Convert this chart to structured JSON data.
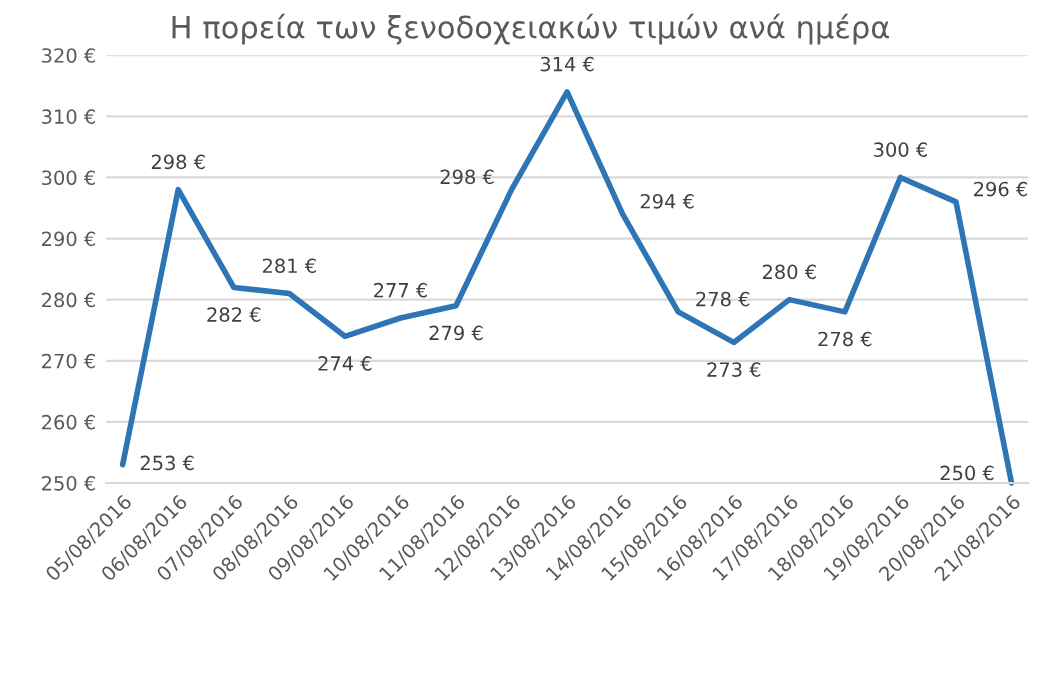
{
  "chart_data": {
    "type": "line",
    "title": "Η πορεία των ξενοδοχειακών τιμών ανά ημέρα",
    "categories": [
      "05/08/2016",
      "06/08/2016",
      "07/08/2016",
      "08/08/2016",
      "09/08/2016",
      "10/08/2016",
      "11/08/2016",
      "12/08/2016",
      "13/08/2016",
      "14/08/2016",
      "15/08/2016",
      "16/08/2016",
      "17/08/2016",
      "18/08/2016",
      "19/08/2016",
      "20/08/2016",
      "21/08/2016"
    ],
    "series": [
      {
        "color": "#2e75b6",
        "values": [
          253,
          298,
          282,
          281,
          274,
          277,
          279,
          298,
          314,
          294,
          278,
          273,
          280,
          278,
          300,
          296,
          250
        ],
        "value_labels": [
          "253 €",
          "298 €",
          "282 €",
          "281 €",
          "274 €",
          "277 €",
          "279 €",
          "298 €",
          "314 €",
          "294 €",
          "278 €",
          "273 €",
          "280 €",
          "278 €",
          "300 €",
          "296 €",
          "250 €"
        ]
      }
    ],
    "ylim": [
      250,
      320
    ],
    "yticks": [
      {
        "value": 250,
        "label": "250 €"
      },
      {
        "value": 260,
        "label": "260 €"
      },
      {
        "value": 270,
        "label": "270 €"
      },
      {
        "value": 280,
        "label": "280 €"
      },
      {
        "value": 290,
        "label": "290 €"
      },
      {
        "value": 300,
        "label": "300 €"
      },
      {
        "value": 310,
        "label": "310 €"
      },
      {
        "value": 320,
        "label": "320 €"
      }
    ],
    "grid": "y",
    "legend": false,
    "marker": "none",
    "line_style": "solid"
  }
}
